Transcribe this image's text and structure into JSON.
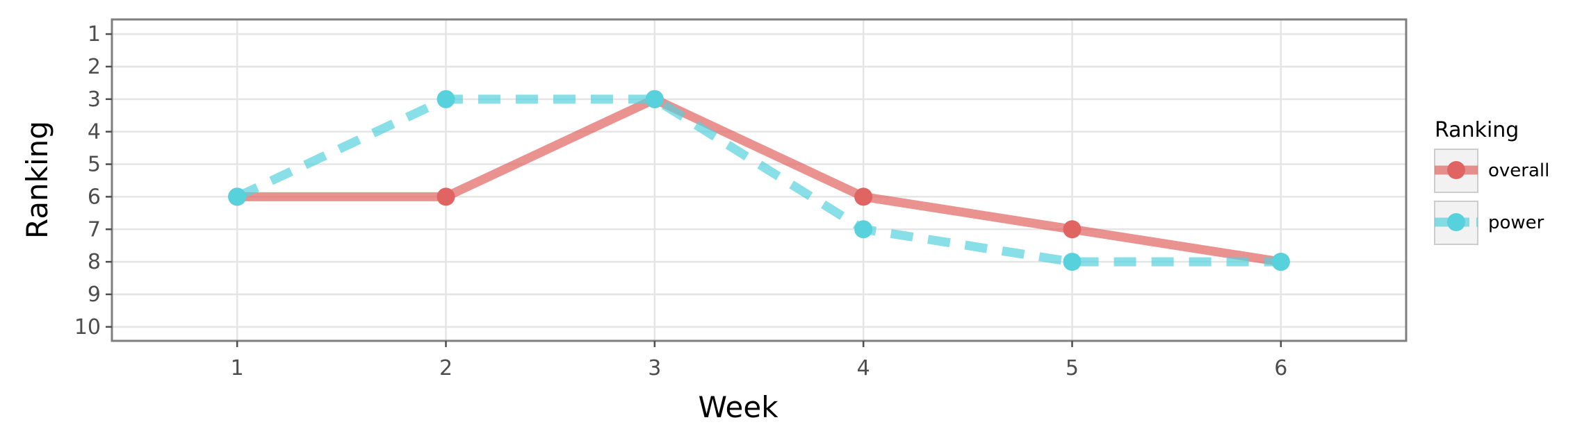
{
  "chart_data": {
    "type": "line",
    "xlabel": "Week",
    "ylabel": "Ranking",
    "x": [
      1,
      2,
      3,
      4,
      5,
      6
    ],
    "x_ticks": [
      "1",
      "2",
      "3",
      "4",
      "5",
      "6"
    ],
    "y_ticks": [
      "1",
      "2",
      "3",
      "4",
      "5",
      "6",
      "7",
      "8",
      "9",
      "10"
    ],
    "xlim": [
      0.4,
      6.6
    ],
    "ylim": [
      10.43,
      0.55
    ],
    "y_reversed": true,
    "grid": true,
    "legend": {
      "title": "Ranking",
      "position": "right"
    },
    "series": [
      {
        "name": "overall",
        "values": [
          6,
          6,
          3,
          6,
          7,
          8
        ],
        "color": "#E06461",
        "line_style": "solid"
      },
      {
        "name": "power",
        "values": [
          6,
          3,
          3,
          7,
          8,
          8
        ],
        "color": "#57D2DD",
        "line_style": "dashed"
      }
    ]
  }
}
